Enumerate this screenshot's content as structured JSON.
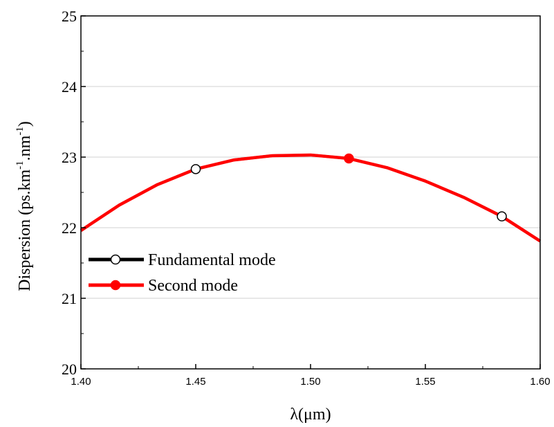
{
  "chart_data": {
    "type": "line",
    "xlabel": "λ(μm)",
    "ylabel": {
      "prefix": "Dispersion (ps.km",
      "sup1": "-1",
      "middle": ".nm",
      "sup2": "-1",
      "suffix": ")"
    },
    "xlim": [
      1.4,
      1.6
    ],
    "ylim": [
      20,
      25
    ],
    "x_ticks": [
      "1.40",
      "1.45",
      "1.50",
      "1.55",
      "1.60"
    ],
    "y_ticks": [
      "20",
      "21",
      "22",
      "23",
      "24",
      "25"
    ],
    "grid": "horizontal",
    "legend_position": "left-middle",
    "x": [
      1.4,
      1.4167,
      1.4333,
      1.45,
      1.4667,
      1.4833,
      1.5,
      1.5167,
      1.5333,
      1.55,
      1.5667,
      1.5833,
      1.6
    ],
    "series": [
      {
        "name": "Fundamental mode",
        "color": "#000000",
        "marker": "open-circle",
        "values": [
          21.96,
          22.32,
          22.61,
          22.83,
          22.96,
          23.02,
          23.03,
          22.98,
          22.85,
          22.66,
          22.43,
          22.16,
          21.81
        ],
        "marker_points": [
          {
            "x": 1.45,
            "y": 22.83
          },
          {
            "x": 1.5833,
            "y": 22.16
          }
        ]
      },
      {
        "name": "Second mode",
        "color": "#ff0000",
        "marker": "filled-circle",
        "values": [
          21.96,
          22.32,
          22.61,
          22.83,
          22.96,
          23.02,
          23.03,
          22.98,
          22.85,
          22.66,
          22.43,
          22.16,
          21.81
        ],
        "marker_points": [
          {
            "x": 1.5167,
            "y": 22.98
          }
        ]
      }
    ]
  }
}
